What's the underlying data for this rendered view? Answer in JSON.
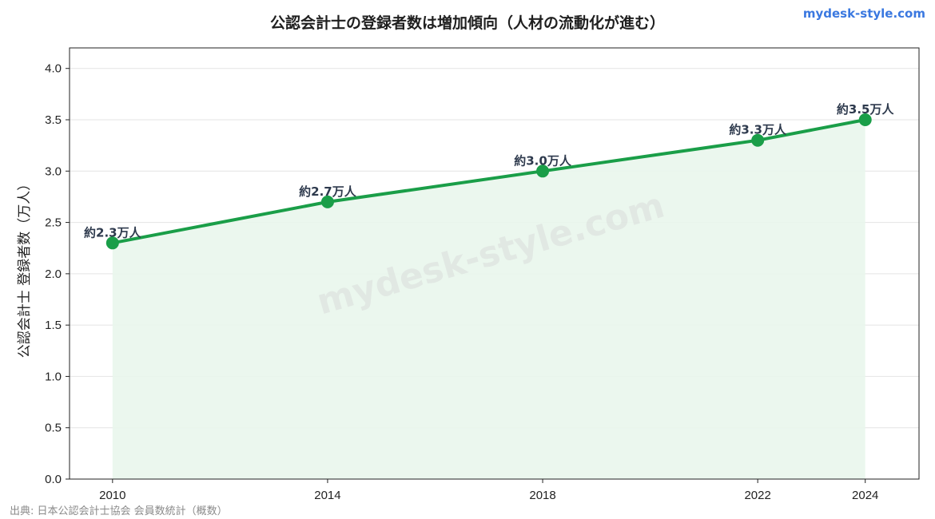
{
  "header": {
    "brand": "mydesk-style.com"
  },
  "footer": {
    "source": "出典: 日本公認会計士協会 会員数統計（概数）"
  },
  "watermark": "mydesk-style.com",
  "colors": {
    "line": "#1a9e48",
    "fill": "#e9f6ec",
    "grid": "#e4e4e4",
    "label": "#2e3a4d",
    "brand": "#3a78e0"
  },
  "chart_data": {
    "type": "area",
    "title": "公認会計士の登録者数は増加傾向（人材の流動化が進む）",
    "ylabel": "公認会計士 登録者数（万人）",
    "xlabel": "",
    "x": [
      2010,
      2014,
      2018,
      2022,
      2024
    ],
    "x_ticks": [
      "2010",
      "2014",
      "2018",
      "2022",
      "2024"
    ],
    "series": [
      {
        "values": [
          2.3,
          2.7,
          3.0,
          3.3,
          3.5
        ],
        "labels": [
          "約2.3万人",
          "約2.7万人",
          "約3.0万人",
          "約3.3万人",
          "約3.5万人"
        ]
      }
    ],
    "xlim": [
      2009.2,
      2025.0
    ],
    "ylim": [
      0,
      4.2
    ],
    "y_ticks": [
      "0.0",
      "0.5",
      "1.0",
      "1.5",
      "2.0",
      "2.5",
      "3.0",
      "3.5",
      "4.0"
    ],
    "grid": "horizontal",
    "legend": "none"
  }
}
